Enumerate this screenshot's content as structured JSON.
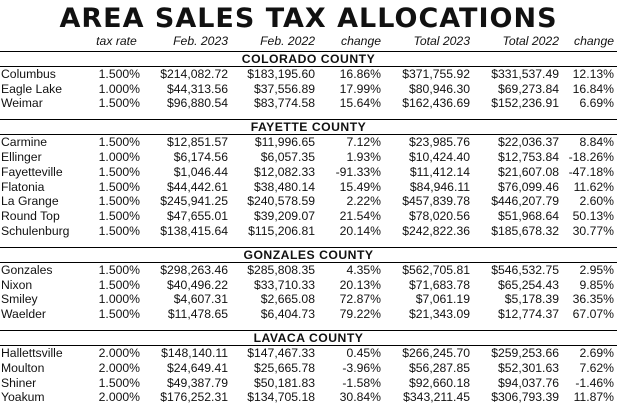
{
  "title": "AREA SALES TAX ALLOCATIONS",
  "columns": [
    "",
    "tax rate",
    "Feb. 2023",
    "Feb. 2022",
    "change",
    "Total 2023",
    "Total 2022",
    "change"
  ],
  "counties": [
    {
      "name": "COLORADO COUNTY",
      "rows": [
        [
          "Columbus",
          "1.500%",
          "$214,082.72",
          "$183,195.60",
          "16.86%",
          "$371,755.92",
          "$331,537.49",
          "12.13%"
        ],
        [
          "Eagle Lake",
          "1.000%",
          "$44,313.56",
          "$37,556.89",
          "17.99%",
          "$80,946.30",
          "$69,273.84",
          "16.84%"
        ],
        [
          "Weimar",
          "1.500%",
          "$96,880.54",
          "$83,774.58",
          "15.64%",
          "$162,436.69",
          "$152,236.91",
          "6.69%"
        ]
      ]
    },
    {
      "name": "FAYETTE COUNTY",
      "rows": [
        [
          "Carmine",
          "1.500%",
          "$12,851.57",
          "$11,996.65",
          "7.12%",
          "$23,985.76",
          "$22,036.37",
          "8.84%"
        ],
        [
          "Ellinger",
          "1.000%",
          "$6,174.56",
          "$6,057.35",
          "1.93%",
          "$10,424.40",
          "$12,753.84",
          "-18.26%"
        ],
        [
          "Fayetteville",
          "1.500%",
          "$1,046.44",
          "$12,082.33",
          "-91.33%",
          "$11,412.14",
          "$21,607.08",
          "-47.18%"
        ],
        [
          "Flatonia",
          "1.500%",
          "$44,442.61",
          "$38,480.14",
          "15.49%",
          "$84,946.11",
          "$76,099.46",
          "11.62%"
        ],
        [
          "La Grange",
          "1.500%",
          "$245,941.25",
          "$240,578.59",
          "2.22%",
          "$457,839.78",
          "$446,207.79",
          "2.60%"
        ],
        [
          "Round Top",
          "1.500%",
          "$47,655.01",
          "$39,209.07",
          "21.54%",
          "$78,020.56",
          "$51,968.64",
          "50.13%"
        ],
        [
          "Schulenburg",
          "1.500%",
          "$138,415.64",
          "$115,206.81",
          "20.14%",
          "$242,822.36",
          "$185,678.32",
          "30.77%"
        ]
      ]
    },
    {
      "name": "GONZALES COUNTY",
      "rows": [
        [
          "Gonzales",
          "1.500%",
          "$298,263.46",
          "$285,808.35",
          "4.35%",
          "$562,705.81",
          "$546,532.75",
          "2.95%"
        ],
        [
          "Nixon",
          "1.500%",
          "$40,496.22",
          "$33,710.33",
          "20.13%",
          "$71,683.78",
          "$65,254.43",
          "9.85%"
        ],
        [
          "Smiley",
          "1.000%",
          "$4,607.31",
          "$2,665.08",
          "72.87%",
          "$7,061.19",
          "$5,178.39",
          "36.35%"
        ],
        [
          "Waelder",
          "1.500%",
          "$11,478.65",
          "$6,404.73",
          "79.22%",
          "$21,343.09",
          "$12,774.37",
          "67.07%"
        ]
      ]
    },
    {
      "name": "LAVACA COUNTY",
      "rows": [
        [
          "Hallettsville",
          "2.000%",
          "$148,140.11",
          "$147,467.33",
          "0.45%",
          "$266,245.70",
          "$259,253.66",
          "2.69%"
        ],
        [
          "Moulton",
          "2.000%",
          "$24,649.41",
          "$25,665.78",
          "-3.96%",
          "$56,287.85",
          "$52,301.63",
          "7.62%"
        ],
        [
          "Shiner",
          "1.500%",
          "$49,387.79",
          "$50,181.83",
          "-1.58%",
          "$92,660.18",
          "$94,037.76",
          "-1.46%"
        ],
        [
          "Yoakum",
          "2.000%",
          "$176,252.31",
          "$134,705.18",
          "30.84%",
          "$343,211.45",
          "$306,793.39",
          "11.87%"
        ]
      ]
    }
  ]
}
